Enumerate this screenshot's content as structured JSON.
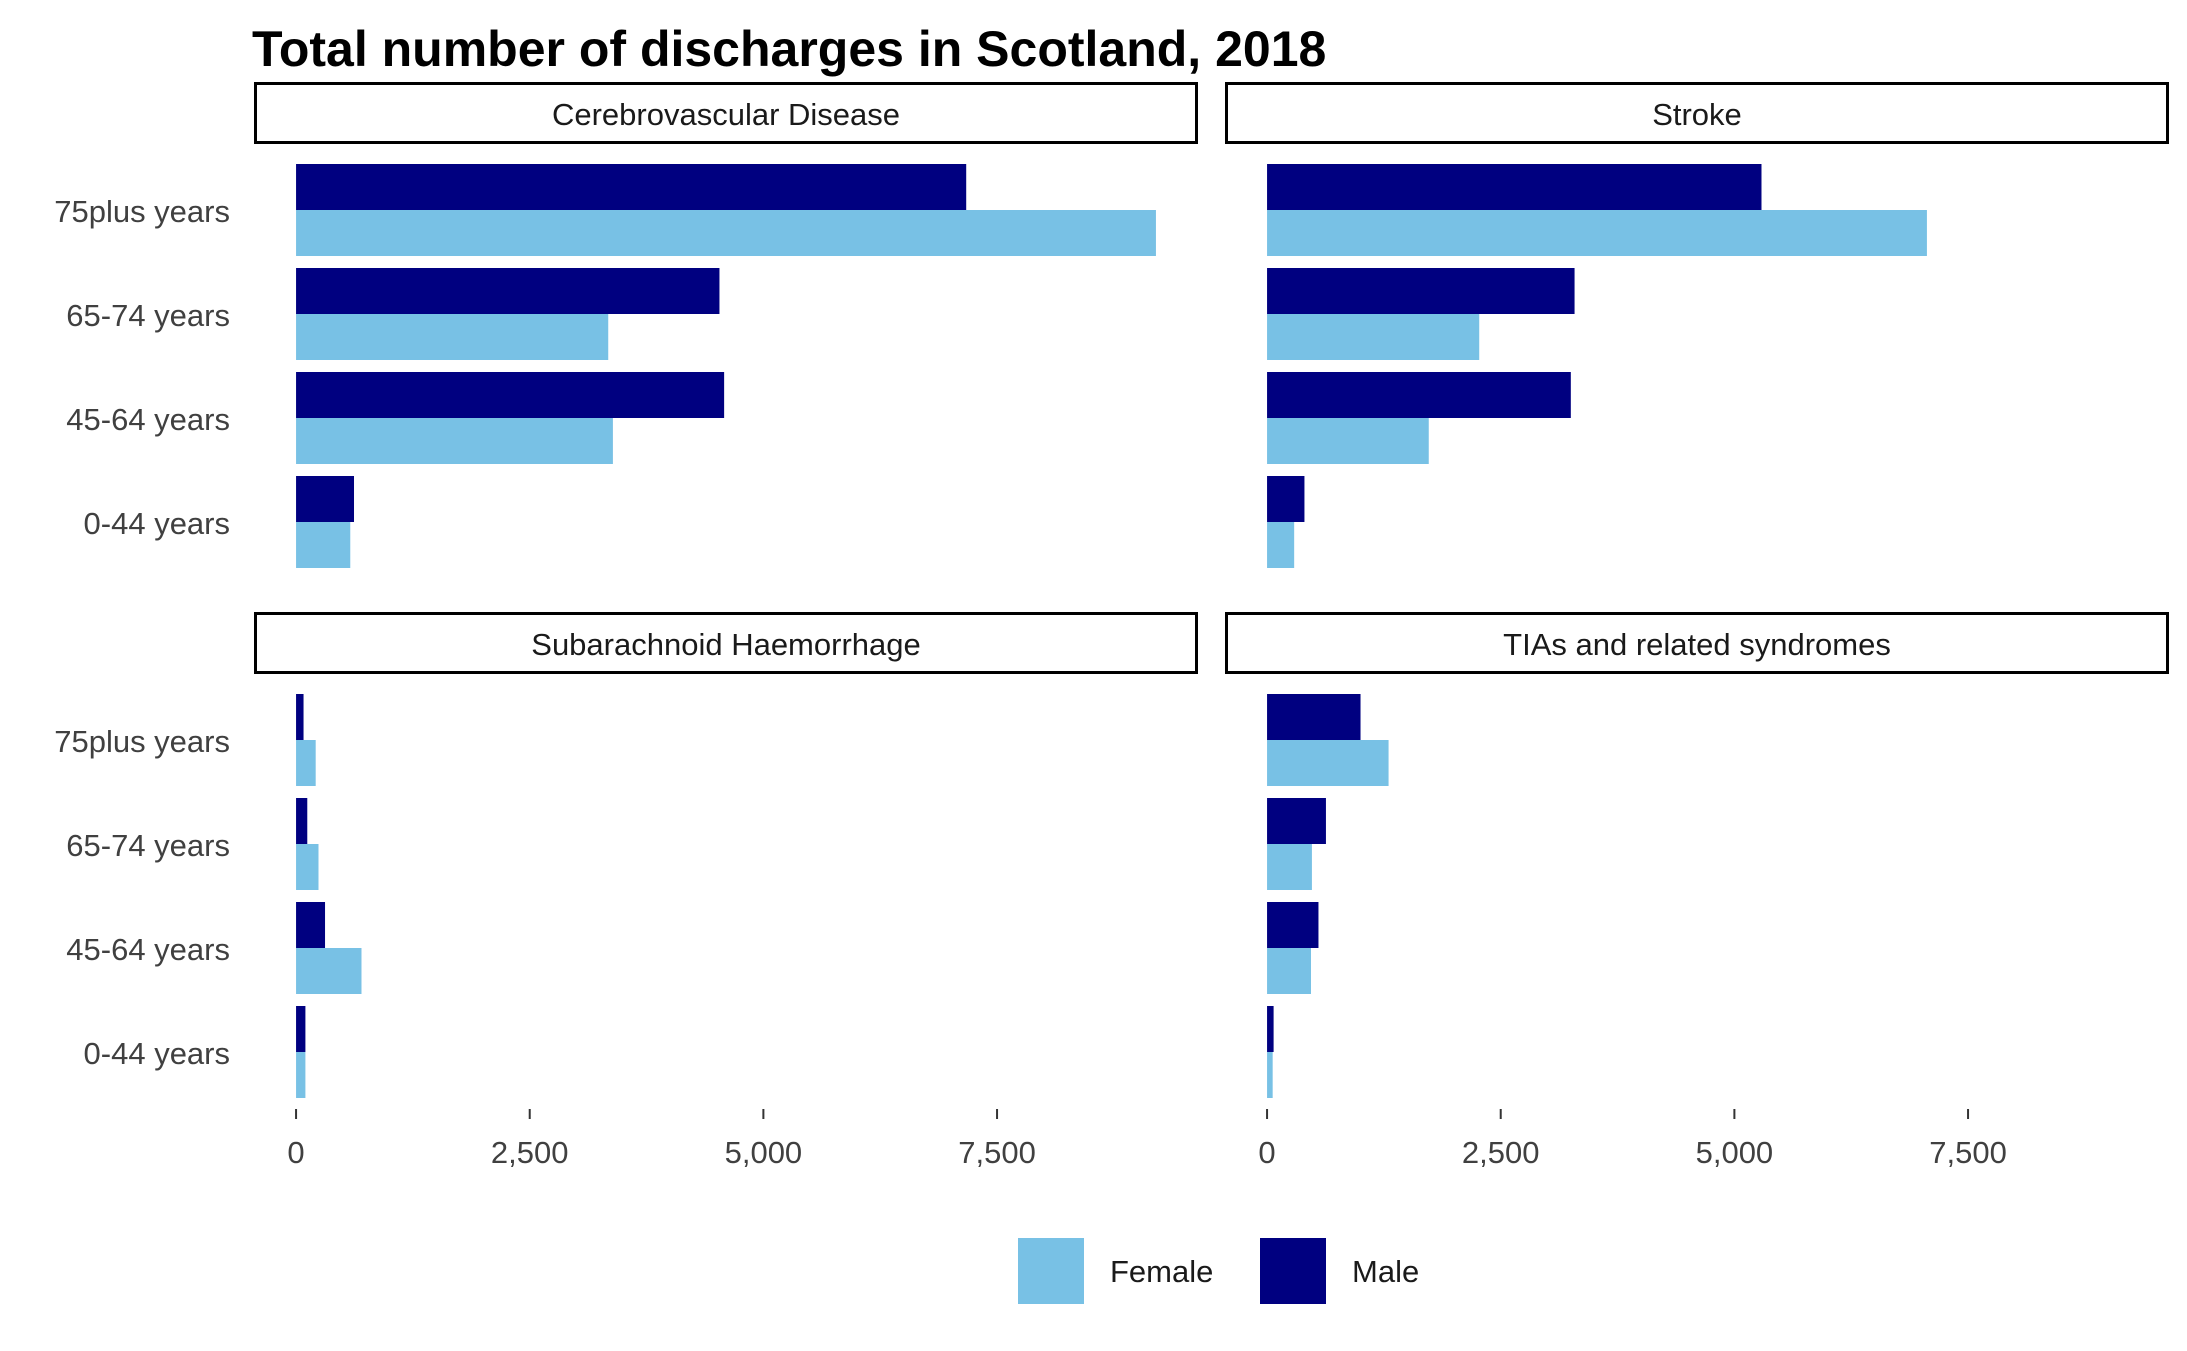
{
  "chart_data": {
    "type": "bar",
    "orientation": "horizontal",
    "title": "Total number of discharges in Scotland, 2018",
    "facets": [
      {
        "name": "Cerebrovascular Disease",
        "categories": [
          "0-44 years",
          "45-64 years",
          "65-74 years",
          "75plus years"
        ],
        "series": [
          {
            "name": "Female",
            "values": [
              580,
              3390,
              3340,
              9200
            ]
          },
          {
            "name": "Male",
            "values": [
              620,
              4580,
              4530,
              7170
            ]
          }
        ]
      },
      {
        "name": "Stroke",
        "categories": [
          "0-44 years",
          "45-64 years",
          "65-74 years",
          "75plus years"
        ],
        "series": [
          {
            "name": "Female",
            "values": [
              290,
              1730,
              2270,
              7060
            ]
          },
          {
            "name": "Male",
            "values": [
              400,
              3250,
              3290,
              5290
            ]
          }
        ]
      },
      {
        "name": "Subarachnoid Haemorrhage",
        "categories": [
          "0-44 years",
          "45-64 years",
          "65-74 years",
          "75plus years"
        ],
        "series": [
          {
            "name": "Female",
            "values": [
              100,
              700,
              240,
              210
            ]
          },
          {
            "name": "Male",
            "values": [
              100,
              310,
              120,
              80
            ]
          }
        ]
      },
      {
        "name": "TIAs and related syndromes",
        "categories": [
          "0-44 years",
          "45-64 years",
          "65-74 years",
          "75plus years"
        ],
        "series": [
          {
            "name": "Female",
            "values": [
              60,
              470,
              480,
              1300
            ]
          },
          {
            "name": "Male",
            "values": [
              70,
              550,
              630,
              1000
            ]
          }
        ]
      }
    ],
    "xlim": [
      -450,
      9650
    ],
    "xticks": [
      0,
      2500,
      5000,
      7500
    ],
    "xtick_labels": [
      "0",
      "2,500",
      "5,000",
      "7,500"
    ],
    "legend": {
      "placement": "bottom",
      "entries": [
        {
          "name": "Female",
          "color": "#78C1E5"
        },
        {
          "name": "Male",
          "color": "#000080"
        }
      ]
    },
    "grid": false,
    "colors": {
      "Female": "#78C1E5",
      "Male": "#000080"
    }
  }
}
